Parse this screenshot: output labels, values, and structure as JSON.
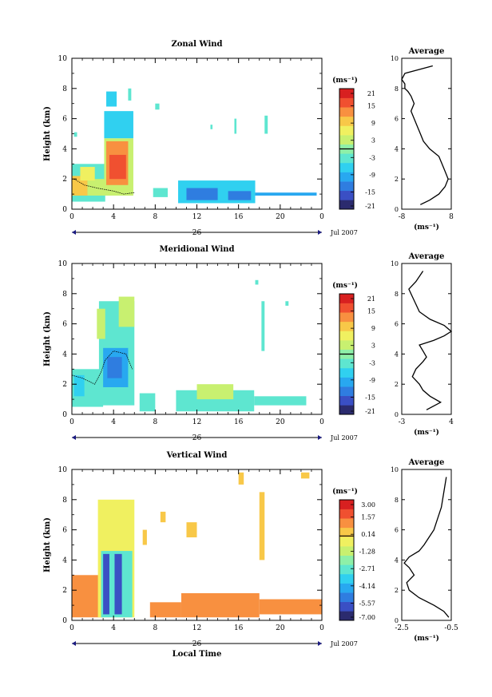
{
  "chart_data": [
    {
      "type": "heatmap",
      "title": "Zonal Wind",
      "ylabel": "Height (km)",
      "xlabel": "",
      "x_ticks": [
        "0",
        "4",
        "8",
        "12",
        "16",
        "20",
        "0"
      ],
      "y_ticks": [
        "0",
        "2",
        "4",
        "6",
        "8",
        "10"
      ],
      "date_marker": "26",
      "date_label": "Jul 2007",
      "colorbar_unit": "(ms⁻¹)",
      "colorbar_ticks": [
        "21",
        "15",
        "9",
        "3",
        "-3",
        "-9",
        "-15",
        "-21"
      ],
      "xlim": [
        0,
        24
      ],
      "ylim": [
        0,
        10
      ],
      "blocks": [
        {
          "t0": 0,
          "t1": 3.2,
          "h0": 0.5,
          "h1": 3.0,
          "v": -3
        },
        {
          "t0": 0,
          "t1": 1.5,
          "h0": 0.9,
          "h1": 2.2,
          "v": 9
        },
        {
          "t0": 1.5,
          "t1": 3.2,
          "h0": 0.9,
          "h1": 2.0,
          "v": 3
        },
        {
          "t0": 0.8,
          "t1": 2.2,
          "h0": 1.9,
          "h1": 2.8,
          "v": 6
        },
        {
          "t0": 3.1,
          "t1": 5.9,
          "h0": 0.9,
          "h1": 4.7,
          "v": 3
        },
        {
          "t0": 3.3,
          "t1": 5.4,
          "h0": 1.6,
          "h1": 4.5,
          "v": 12
        },
        {
          "t0": 3.6,
          "t1": 5.2,
          "h0": 2.0,
          "h1": 3.6,
          "v": 15
        },
        {
          "t0": 3.1,
          "t1": 5.9,
          "h0": 4.7,
          "h1": 6.5,
          "v": -6
        },
        {
          "t0": 3.3,
          "t1": 4.3,
          "h0": 6.8,
          "h1": 7.8,
          "v": -6
        },
        {
          "t0": 5.4,
          "t1": 5.7,
          "h0": 7.2,
          "h1": 8.0,
          "v": -3
        },
        {
          "t0": 8.0,
          "t1": 8.4,
          "h0": 6.6,
          "h1": 7.0,
          "v": -3
        },
        {
          "t0": 10.2,
          "t1": 17.6,
          "h0": 0.4,
          "h1": 1.9,
          "v": -6
        },
        {
          "t0": 11.0,
          "t1": 14.0,
          "h0": 0.6,
          "h1": 1.4,
          "v": -12
        },
        {
          "t0": 15.0,
          "t1": 17.2,
          "h0": 0.6,
          "h1": 1.2,
          "v": -12
        },
        {
          "t0": 7.8,
          "t1": 9.2,
          "h0": 0.8,
          "h1": 1.4,
          "v": -3
        },
        {
          "t0": 17.6,
          "t1": 23.5,
          "h0": 0.9,
          "h1": 1.1,
          "v": -9
        },
        {
          "t0": 13.3,
          "t1": 13.5,
          "h0": 5.3,
          "h1": 5.6,
          "v": -3
        },
        {
          "t0": 15.6,
          "t1": 15.8,
          "h0": 5.0,
          "h1": 6.0,
          "v": -3
        },
        {
          "t0": 18.5,
          "t1": 18.8,
          "h0": 5.0,
          "h1": 6.2,
          "v": -3
        },
        {
          "t0": 0.2,
          "t1": 0.5,
          "h0": 4.8,
          "h1": 5.1,
          "v": -3
        }
      ],
      "contour": [
        [
          0.2,
          2.0
        ],
        [
          1.2,
          1.6
        ],
        [
          2.4,
          1.4
        ],
        [
          3.2,
          1.3
        ],
        [
          4.0,
          1.2
        ],
        [
          5.0,
          1.0
        ],
        [
          6.0,
          1.1
        ]
      ],
      "profile": {
        "xlim": [
          -8,
          8
        ],
        "x_ticks": [
          "-8",
          "8"
        ],
        "title": "Average",
        "unit": "(ms⁻¹)",
        "values": [
          -2,
          1,
          4,
          6,
          7,
          6,
          5,
          4,
          1,
          -1,
          -2,
          -3,
          -4,
          -5,
          -4,
          -5,
          -6,
          -7,
          -7,
          -8,
          -7,
          2
        ],
        "heights": [
          0.3,
          0.6,
          1.0,
          1.5,
          2.0,
          2.5,
          3.0,
          3.5,
          4.0,
          4.5,
          5.0,
          5.5,
          6.0,
          6.5,
          7.0,
          7.5,
          7.8,
          8.0,
          8.3,
          8.6,
          9.0,
          9.5
        ]
      }
    },
    {
      "type": "heatmap",
      "title": "Meridional Wind",
      "ylabel": "Height (km)",
      "xlabel": "",
      "x_ticks": [
        "0",
        "4",
        "8",
        "12",
        "16",
        "20",
        "0"
      ],
      "y_ticks": [
        "0",
        "2",
        "4",
        "6",
        "8",
        "10"
      ],
      "date_marker": "26",
      "date_label": "Jul 2007",
      "colorbar_unit": "(ms⁻¹)",
      "colorbar_ticks": [
        "21",
        "15",
        "9",
        "3",
        "-3",
        "-9",
        "-15",
        "-21"
      ],
      "xlim": [
        0,
        24
      ],
      "ylim": [
        0,
        10
      ],
      "blocks": [
        {
          "t0": 0,
          "t1": 3.0,
          "h0": 0.5,
          "h1": 3.0,
          "v": -3
        },
        {
          "t0": 0.2,
          "t1": 1.2,
          "h0": 1.2,
          "h1": 2.6,
          "v": -6
        },
        {
          "t0": 2.6,
          "t1": 6.0,
          "h0": 0.6,
          "h1": 7.5,
          "v": -3
        },
        {
          "t0": 3.0,
          "t1": 5.4,
          "h0": 1.8,
          "h1": 4.4,
          "v": -9
        },
        {
          "t0": 3.4,
          "t1": 4.8,
          "h0": 2.4,
          "h1": 3.8,
          "v": -12
        },
        {
          "t0": 4.5,
          "t1": 6.0,
          "h0": 5.8,
          "h1": 7.8,
          "v": 3
        },
        {
          "t0": 2.4,
          "t1": 3.2,
          "h0": 5.0,
          "h1": 7.0,
          "v": 3
        },
        {
          "t0": 10.0,
          "t1": 17.5,
          "h0": 0.2,
          "h1": 1.6,
          "v": -3
        },
        {
          "t0": 12.0,
          "t1": 15.5,
          "h0": 1.0,
          "h1": 2.0,
          "v": 3
        },
        {
          "t0": 6.5,
          "t1": 8.0,
          "h0": 0.2,
          "h1": 1.4,
          "v": -3
        },
        {
          "t0": 17.5,
          "t1": 22.5,
          "h0": 0.6,
          "h1": 1.2,
          "v": -3
        },
        {
          "t0": 18.2,
          "t1": 18.5,
          "h0": 4.2,
          "h1": 7.5,
          "v": -3
        },
        {
          "t0": 17.6,
          "t1": 17.9,
          "h0": 8.6,
          "h1": 8.9,
          "v": -3
        },
        {
          "t0": 20.5,
          "t1": 20.8,
          "h0": 7.2,
          "h1": 7.5,
          "v": -3
        }
      ],
      "contour": [
        [
          0.0,
          2.6
        ],
        [
          1.0,
          2.4
        ],
        [
          2.2,
          2.0
        ],
        [
          2.8,
          2.8
        ],
        [
          3.2,
          3.6
        ],
        [
          4.0,
          4.2
        ],
        [
          5.2,
          4.0
        ],
        [
          5.8,
          3.0
        ]
      ],
      "profile": {
        "xlim": [
          -3,
          4
        ],
        "x_ticks": [
          "-3",
          "4"
        ],
        "title": "Average",
        "unit": "(ms⁻¹)",
        "values": [
          0.5,
          2.5,
          1.0,
          0.0,
          -0.5,
          -1.5,
          -1.0,
          0.0,
          0.5,
          0.0,
          -0.5,
          1.5,
          3.0,
          4.0,
          3.0,
          1.0,
          -0.5,
          -1.0,
          -1.5,
          -2.0,
          -1.0,
          0.0
        ],
        "heights": [
          0.3,
          0.8,
          1.2,
          1.6,
          2.0,
          2.5,
          3.0,
          3.5,
          3.8,
          4.2,
          4.6,
          4.9,
          5.2,
          5.5,
          5.9,
          6.3,
          6.8,
          7.3,
          7.8,
          8.3,
          8.8,
          9.5
        ]
      }
    },
    {
      "type": "heatmap",
      "title": "Vertical Wind",
      "ylabel": "Height (km)",
      "xlabel": "Local Time",
      "x_ticks": [
        "0",
        "4",
        "8",
        "12",
        "16",
        "20",
        "0"
      ],
      "y_ticks": [
        "0",
        "2",
        "4",
        "6",
        "8",
        "10"
      ],
      "date_marker": "26",
      "date_label": "Jul 2007",
      "colorbar_unit": "(ms⁻¹)",
      "colorbar_ticks": [
        "3.00",
        "1.57",
        "0.14",
        "-1.28",
        "-2.71",
        "-4.14",
        "-5.57",
        "-7.00"
      ],
      "xlim": [
        0,
        24
      ],
      "ylim": [
        0,
        10
      ],
      "blocks": [
        {
          "t0": 0,
          "t1": 3.0,
          "h0": 0.2,
          "h1": 3.0,
          "v": 1.0
        },
        {
          "t0": 2.5,
          "t1": 6.0,
          "h0": 0.2,
          "h1": 8.0,
          "v": -0.3
        },
        {
          "t0": 2.8,
          "t1": 5.8,
          "h0": 0.2,
          "h1": 4.6,
          "v": -2.7
        },
        {
          "t0": 3.0,
          "t1": 3.6,
          "h0": 0.4,
          "h1": 4.4,
          "v": -5.5
        },
        {
          "t0": 4.1,
          "t1": 4.8,
          "h0": 0.4,
          "h1": 4.4,
          "v": -5.5
        },
        {
          "t0": 10.5,
          "t1": 18.0,
          "h0": 0.2,
          "h1": 1.8,
          "v": 1.2
        },
        {
          "t0": 7.5,
          "t1": 10.5,
          "h0": 0.2,
          "h1": 1.2,
          "v": 0.8
        },
        {
          "t0": 18.0,
          "t1": 24.0,
          "h0": 0.4,
          "h1": 1.4,
          "v": 1.0
        },
        {
          "t0": 18.0,
          "t1": 18.5,
          "h0": 4.0,
          "h1": 8.5,
          "v": 0.2
        },
        {
          "t0": 6.8,
          "t1": 7.2,
          "h0": 5.0,
          "h1": 6.0,
          "v": 0.4
        },
        {
          "t0": 8.5,
          "t1": 9.0,
          "h0": 6.5,
          "h1": 7.2,
          "v": 0.4
        },
        {
          "t0": 11.0,
          "t1": 12.0,
          "h0": 5.5,
          "h1": 6.5,
          "v": 0.6
        },
        {
          "t0": 16.0,
          "t1": 16.5,
          "h0": 9.0,
          "h1": 9.8,
          "v": 0.4
        },
        {
          "t0": 22.0,
          "t1": 22.8,
          "h0": 9.4,
          "h1": 9.8,
          "v": 0.4
        }
      ],
      "contour": [],
      "profile": {
        "xlim": [
          -2.5,
          -0.5
        ],
        "x_ticks": [
          "-2.5",
          "-0.5"
        ],
        "title": "Average",
        "unit": "(ms⁻¹)",
        "values": [
          -0.6,
          -0.8,
          -1.2,
          -1.8,
          -2.2,
          -2.3,
          -2.0,
          -2.2,
          -2.4,
          -2.2,
          -1.8,
          -1.6,
          -1.4,
          -1.2,
          -1.1,
          -1.0,
          -0.9,
          -0.8,
          -0.7
        ],
        "heights": [
          0.2,
          0.6,
          1.0,
          1.5,
          2.0,
          2.5,
          3.0,
          3.5,
          3.8,
          4.2,
          4.6,
          5.0,
          5.5,
          6.0,
          6.5,
          7.0,
          7.5,
          8.5,
          9.5
        ]
      }
    }
  ]
}
